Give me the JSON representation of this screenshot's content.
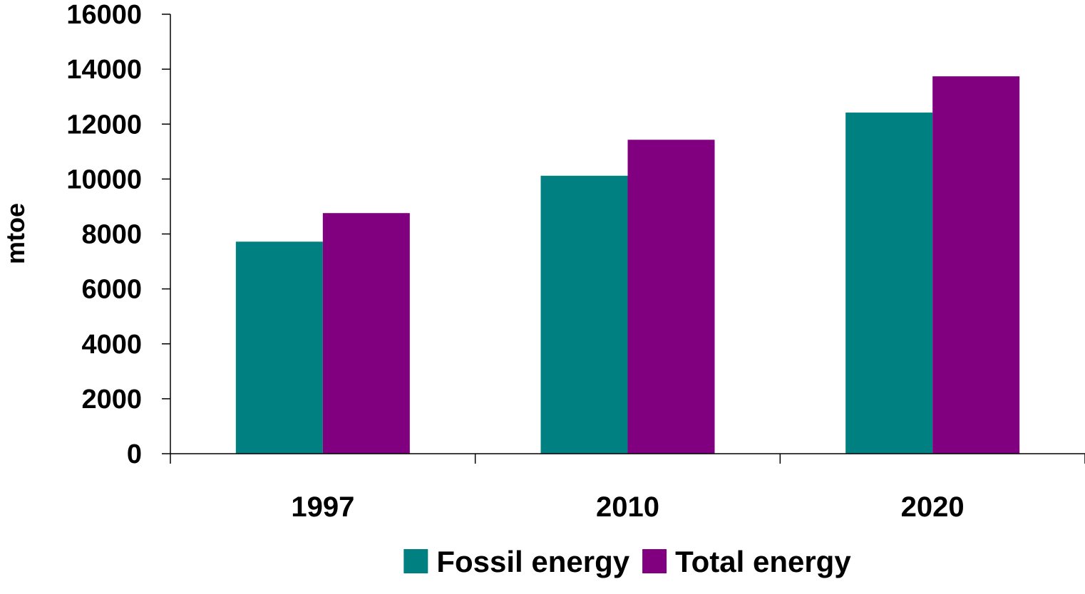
{
  "chart_data": {
    "type": "bar",
    "categories": [
      "1997",
      "2010",
      "2020"
    ],
    "series": [
      {
        "name": "Fossil energy",
        "color": "#008080",
        "values": [
          7720,
          10120,
          12420
        ]
      },
      {
        "name": "Total energy",
        "color": "#800080",
        "values": [
          8760,
          11430,
          13740
        ]
      }
    ],
    "title": "",
    "xlabel": "",
    "ylabel": "mtoe",
    "ylim": [
      0,
      16000
    ],
    "yticks": [
      "0",
      "2000",
      "4000",
      "6000",
      "8000",
      "10000",
      "12000",
      "14000",
      "16000"
    ],
    "grid": false,
    "legend_position": "bottom"
  }
}
